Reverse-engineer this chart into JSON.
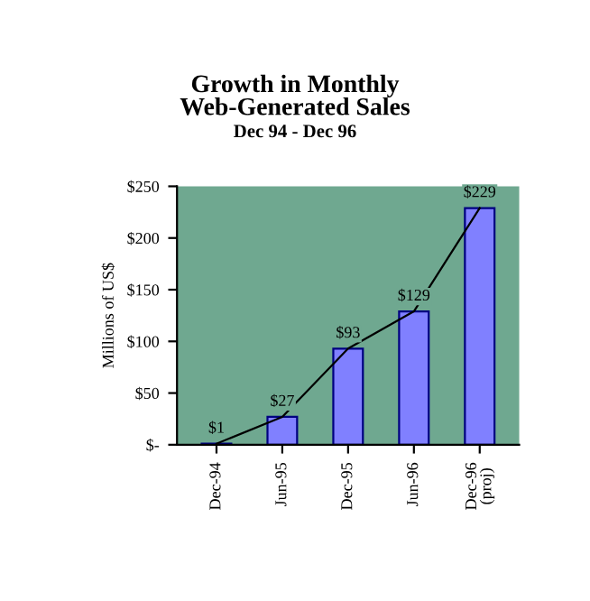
{
  "chart_data": {
    "type": "bar",
    "title": "Growth in Monthly\nWeb-Generated Sales",
    "subtitle": "Dec 94 - Dec 96",
    "ylabel": "Millions of US$",
    "categories": [
      "Dec-94",
      "Jun-95",
      "Dec-95",
      "Jun-96",
      "Dec-96\n(proj)"
    ],
    "series": [
      {
        "type": "bar",
        "color": "#8080ff",
        "values": [
          1,
          27,
          93,
          129,
          229
        ],
        "value_labels": [
          "$1",
          "$27",
          "$93",
          "$129",
          "$229"
        ]
      },
      {
        "type": "line",
        "color": "#000000",
        "values": [
          1,
          27,
          93,
          129,
          229
        ]
      }
    ],
    "ylim": [
      0,
      250
    ],
    "yticks": [
      {
        "value": 0,
        "label": "$-"
      },
      {
        "value": 50,
        "label": "$50"
      },
      {
        "value": 100,
        "label": "$100"
      },
      {
        "value": 150,
        "label": "$150"
      },
      {
        "value": 200,
        "label": "$200"
      },
      {
        "value": 250,
        "label": "$250"
      }
    ],
    "grid": false,
    "legend": false
  }
}
